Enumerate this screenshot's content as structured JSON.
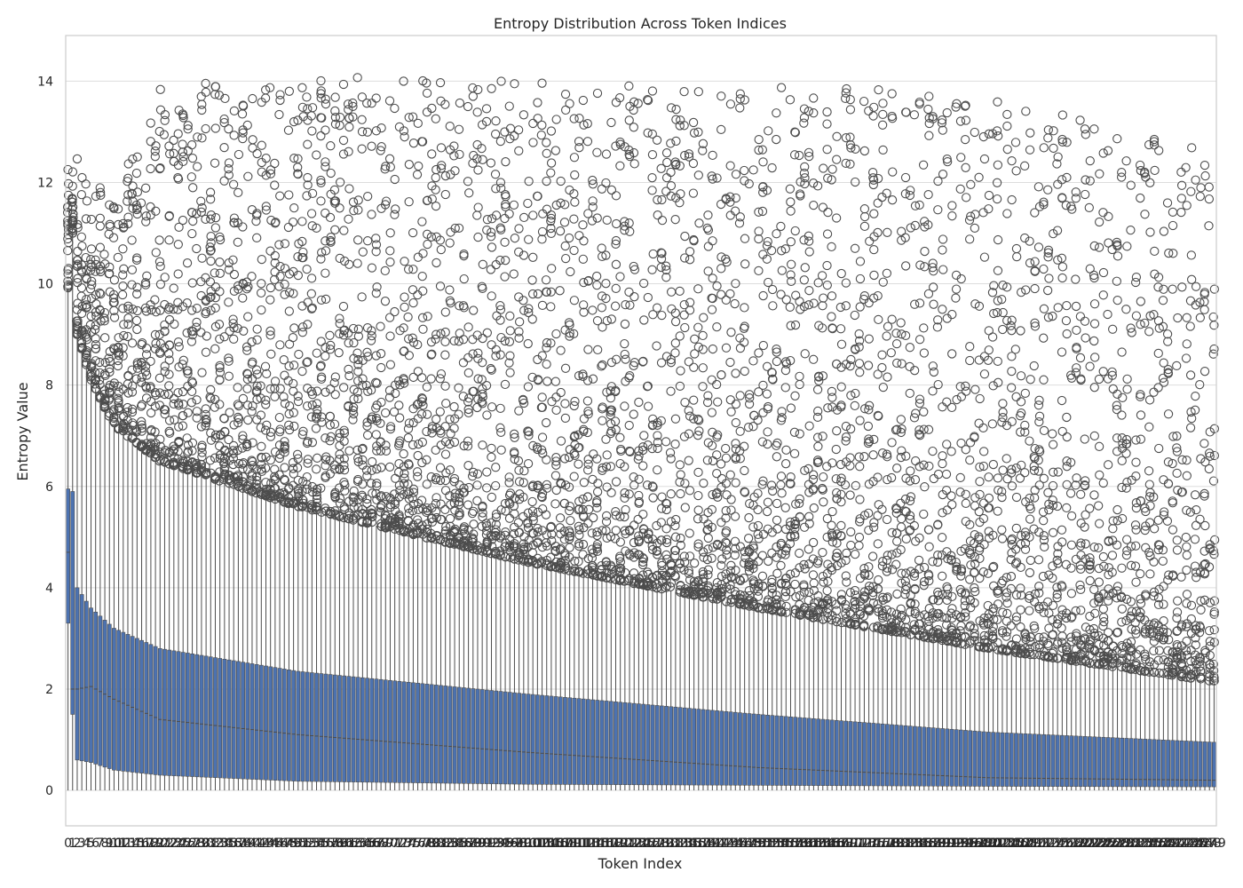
{
  "chart_data": {
    "type": "box",
    "title": "Entropy Distribution Across Token Indices",
    "xlabel": "Token Index",
    "ylabel": "Entropy Value",
    "ylim": [
      -0.7,
      14.9
    ],
    "yticks": [
      0,
      2,
      4,
      6,
      8,
      10,
      12,
      14
    ],
    "grid": true,
    "x_count": 250,
    "x_first": 0,
    "x_last": 249,
    "box_color": "#4c72b0",
    "line_color": "#4d4d4d",
    "summary_at_index": [
      {
        "x": 0,
        "q1": 3.3,
        "median": 4.7,
        "q3": 5.95,
        "whisker_low": 0.0,
        "whisker_high": 9.9,
        "max": 12.4
      },
      {
        "x": 1,
        "q1": 1.5,
        "median": 2.0,
        "q3": 5.9,
        "whisker_low": 0.0,
        "whisker_high": 11.0,
        "max": 12.5
      },
      {
        "x": 2,
        "q1": 0.6,
        "median": 2.0,
        "q3": 4.0,
        "whisker_low": 0.0,
        "whisker_high": 9.0,
        "max": 12.5
      },
      {
        "x": 5,
        "q1": 0.55,
        "median": 2.05,
        "q3": 3.6,
        "whisker_low": 0.0,
        "whisker_high": 8.1,
        "max": 12.0
      },
      {
        "x": 10,
        "q1": 0.4,
        "median": 1.8,
        "q3": 3.2,
        "whisker_low": 0.0,
        "whisker_high": 7.2,
        "max": 11.9
      },
      {
        "x": 20,
        "q1": 0.3,
        "median": 1.4,
        "q3": 2.8,
        "whisker_low": 0.0,
        "whisker_high": 6.5,
        "max": 13.9
      },
      {
        "x": 50,
        "q1": 0.18,
        "median": 1.1,
        "q3": 2.35,
        "whisker_low": 0.0,
        "whisker_high": 5.6,
        "max": 14.1
      },
      {
        "x": 100,
        "q1": 0.12,
        "median": 0.75,
        "q3": 1.9,
        "whisker_low": 0.0,
        "whisker_high": 4.5,
        "max": 14.0
      },
      {
        "x": 150,
        "q1": 0.1,
        "median": 0.45,
        "q3": 1.5,
        "whisker_low": 0.0,
        "whisker_high": 3.6,
        "max": 14.0
      },
      {
        "x": 200,
        "q1": 0.08,
        "median": 0.25,
        "q3": 1.15,
        "whisker_low": 0.0,
        "whisker_high": 2.8,
        "max": 13.7
      },
      {
        "x": 249,
        "q1": 0.07,
        "median": 0.2,
        "q3": 0.95,
        "whisker_low": 0.0,
        "whisker_high": 2.15,
        "max": 12.6
      }
    ]
  }
}
